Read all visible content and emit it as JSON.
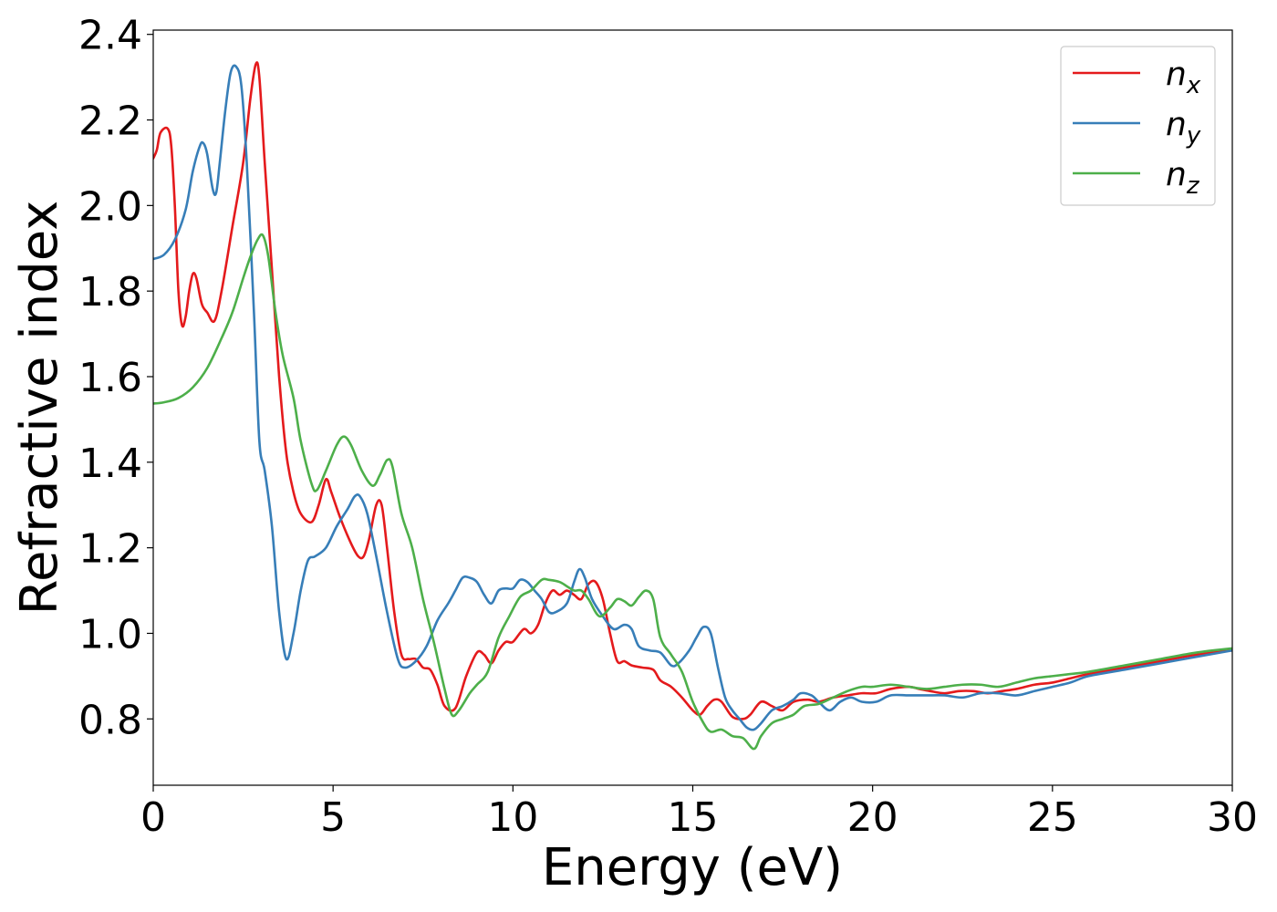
{
  "chart_data": {
    "type": "line",
    "title": "",
    "xlabel": "Energy (eV)",
    "ylabel": "Refractive index",
    "xlim": [
      0,
      30
    ],
    "ylim": [
      0.645,
      2.41
    ],
    "grid": false,
    "legend_position": "top-right",
    "x_ticks": [
      0,
      5,
      10,
      15,
      20,
      25,
      30
    ],
    "x_tick_labels": [
      "0",
      "5",
      "10",
      "15",
      "20",
      "25",
      "30"
    ],
    "y_ticks": [
      0.8,
      1.0,
      1.2,
      1.4,
      1.6,
      1.8,
      2.0,
      2.2,
      2.4
    ],
    "y_tick_labels": [
      "0.8",
      "1.0",
      "1.2",
      "1.4",
      "1.6",
      "1.8",
      "2.0",
      "2.2",
      "2.4"
    ],
    "series": [
      {
        "name": "n_x",
        "label_base": "n",
        "label_sub": "x",
        "color": "#e41a1c",
        "points": [
          [
            0,
            2.11
          ],
          [
            0.1,
            2.13
          ],
          [
            0.2,
            2.17
          ],
          [
            0.4,
            2.18
          ],
          [
            0.5,
            2.14
          ],
          [
            0.6,
            2.0
          ],
          [
            0.7,
            1.8
          ],
          [
            0.8,
            1.72
          ],
          [
            0.9,
            1.74
          ],
          [
            1.0,
            1.8
          ],
          [
            1.1,
            1.84
          ],
          [
            1.2,
            1.83
          ],
          [
            1.35,
            1.77
          ],
          [
            1.5,
            1.75
          ],
          [
            1.7,
            1.73
          ],
          [
            1.9,
            1.8
          ],
          [
            2.2,
            1.95
          ],
          [
            2.5,
            2.1
          ],
          [
            2.7,
            2.25
          ],
          [
            2.85,
            2.33
          ],
          [
            2.95,
            2.3
          ],
          [
            3.1,
            2.1
          ],
          [
            3.3,
            1.85
          ],
          [
            3.5,
            1.6
          ],
          [
            3.7,
            1.42
          ],
          [
            3.9,
            1.33
          ],
          [
            4.1,
            1.28
          ],
          [
            4.4,
            1.26
          ],
          [
            4.6,
            1.3
          ],
          [
            4.8,
            1.36
          ],
          [
            4.95,
            1.33
          ],
          [
            5.2,
            1.27
          ],
          [
            5.5,
            1.21
          ],
          [
            5.7,
            1.18
          ],
          [
            5.85,
            1.18
          ],
          [
            6.0,
            1.22
          ],
          [
            6.2,
            1.3
          ],
          [
            6.35,
            1.3
          ],
          [
            6.5,
            1.2
          ],
          [
            6.7,
            1.05
          ],
          [
            6.9,
            0.95
          ],
          [
            7.1,
            0.94
          ],
          [
            7.3,
            0.94
          ],
          [
            7.5,
            0.92
          ],
          [
            7.7,
            0.915
          ],
          [
            7.9,
            0.88
          ],
          [
            8.1,
            0.83
          ],
          [
            8.4,
            0.825
          ],
          [
            8.7,
            0.9
          ],
          [
            9.0,
            0.955
          ],
          [
            9.2,
            0.95
          ],
          [
            9.4,
            0.93
          ],
          [
            9.6,
            0.96
          ],
          [
            9.8,
            0.98
          ],
          [
            10.0,
            0.98
          ],
          [
            10.3,
            1.01
          ],
          [
            10.5,
            1.0
          ],
          [
            10.7,
            1.02
          ],
          [
            10.9,
            1.07
          ],
          [
            11.1,
            1.1
          ],
          [
            11.3,
            1.09
          ],
          [
            11.5,
            1.1
          ],
          [
            11.7,
            1.09
          ],
          [
            11.9,
            1.08
          ],
          [
            12.1,
            1.115
          ],
          [
            12.3,
            1.12
          ],
          [
            12.5,
            1.08
          ],
          [
            12.7,
            1.0
          ],
          [
            12.9,
            0.935
          ],
          [
            13.1,
            0.935
          ],
          [
            13.3,
            0.925
          ],
          [
            13.6,
            0.92
          ],
          [
            13.9,
            0.915
          ],
          [
            14.1,
            0.89
          ],
          [
            14.4,
            0.875
          ],
          [
            14.7,
            0.85
          ],
          [
            15.0,
            0.82
          ],
          [
            15.2,
            0.81
          ],
          [
            15.4,
            0.83
          ],
          [
            15.6,
            0.845
          ],
          [
            15.8,
            0.84
          ],
          [
            16.1,
            0.805
          ],
          [
            16.4,
            0.8
          ],
          [
            16.6,
            0.81
          ],
          [
            16.9,
            0.84
          ],
          [
            17.2,
            0.83
          ],
          [
            17.5,
            0.82
          ],
          [
            17.8,
            0.84
          ],
          [
            18.2,
            0.845
          ],
          [
            18.5,
            0.84
          ],
          [
            18.9,
            0.85
          ],
          [
            19.3,
            0.855
          ],
          [
            19.7,
            0.86
          ],
          [
            20.1,
            0.86
          ],
          [
            20.5,
            0.87
          ],
          [
            21.0,
            0.875
          ],
          [
            21.3,
            0.87
          ],
          [
            21.6,
            0.865
          ],
          [
            22.0,
            0.86
          ],
          [
            22.4,
            0.865
          ],
          [
            22.8,
            0.865
          ],
          [
            23.2,
            0.86
          ],
          [
            23.6,
            0.865
          ],
          [
            24.0,
            0.87
          ],
          [
            24.5,
            0.88
          ],
          [
            25.0,
            0.885
          ],
          [
            25.5,
            0.895
          ],
          [
            26.0,
            0.905
          ],
          [
            27.0,
            0.92
          ],
          [
            28.0,
            0.935
          ],
          [
            29.0,
            0.95
          ],
          [
            30.0,
            0.96
          ]
        ]
      },
      {
        "name": "n_y",
        "label_base": "n",
        "label_sub": "y",
        "color": "#377eb8",
        "points": [
          [
            0,
            1.875
          ],
          [
            0.3,
            1.885
          ],
          [
            0.6,
            1.92
          ],
          [
            0.9,
            1.99
          ],
          [
            1.1,
            2.08
          ],
          [
            1.3,
            2.14
          ],
          [
            1.4,
            2.145
          ],
          [
            1.5,
            2.12
          ],
          [
            1.65,
            2.04
          ],
          [
            1.75,
            2.03
          ],
          [
            1.85,
            2.1
          ],
          [
            2.0,
            2.22
          ],
          [
            2.15,
            2.31
          ],
          [
            2.3,
            2.325
          ],
          [
            2.45,
            2.28
          ],
          [
            2.6,
            2.1
          ],
          [
            2.8,
            1.75
          ],
          [
            2.95,
            1.45
          ],
          [
            3.1,
            1.38
          ],
          [
            3.3,
            1.25
          ],
          [
            3.5,
            1.05
          ],
          [
            3.7,
            0.94
          ],
          [
            3.9,
            1.0
          ],
          [
            4.1,
            1.1
          ],
          [
            4.3,
            1.17
          ],
          [
            4.5,
            1.18
          ],
          [
            4.8,
            1.2
          ],
          [
            5.1,
            1.25
          ],
          [
            5.4,
            1.29
          ],
          [
            5.6,
            1.32
          ],
          [
            5.75,
            1.32
          ],
          [
            5.95,
            1.28
          ],
          [
            6.2,
            1.18
          ],
          [
            6.5,
            1.05
          ],
          [
            6.8,
            0.94
          ],
          [
            7.0,
            0.92
          ],
          [
            7.3,
            0.935
          ],
          [
            7.6,
            0.97
          ],
          [
            7.9,
            1.03
          ],
          [
            8.2,
            1.07
          ],
          [
            8.4,
            1.1
          ],
          [
            8.6,
            1.13
          ],
          [
            8.8,
            1.13
          ],
          [
            9.0,
            1.12
          ],
          [
            9.2,
            1.09
          ],
          [
            9.4,
            1.07
          ],
          [
            9.6,
            1.1
          ],
          [
            9.8,
            1.105
          ],
          [
            10.0,
            1.105
          ],
          [
            10.2,
            1.125
          ],
          [
            10.4,
            1.12
          ],
          [
            10.6,
            1.1
          ],
          [
            10.8,
            1.08
          ],
          [
            11.0,
            1.05
          ],
          [
            11.2,
            1.05
          ],
          [
            11.5,
            1.07
          ],
          [
            11.7,
            1.12
          ],
          [
            11.85,
            1.15
          ],
          [
            12.0,
            1.13
          ],
          [
            12.2,
            1.08
          ],
          [
            12.5,
            1.04
          ],
          [
            12.8,
            1.01
          ],
          [
            13.1,
            1.02
          ],
          [
            13.3,
            1.01
          ],
          [
            13.5,
            0.97
          ],
          [
            13.8,
            0.96
          ],
          [
            14.1,
            0.955
          ],
          [
            14.4,
            0.925
          ],
          [
            14.6,
            0.93
          ],
          [
            14.9,
            0.96
          ],
          [
            15.1,
            0.99
          ],
          [
            15.3,
            1.015
          ],
          [
            15.5,
            1.0
          ],
          [
            15.7,
            0.92
          ],
          [
            15.9,
            0.85
          ],
          [
            16.1,
            0.82
          ],
          [
            16.3,
            0.8
          ],
          [
            16.5,
            0.78
          ],
          [
            16.7,
            0.775
          ],
          [
            16.9,
            0.79
          ],
          [
            17.2,
            0.82
          ],
          [
            17.5,
            0.83
          ],
          [
            17.8,
            0.845
          ],
          [
            18.0,
            0.86
          ],
          [
            18.3,
            0.855
          ],
          [
            18.5,
            0.84
          ],
          [
            18.8,
            0.82
          ],
          [
            19.1,
            0.84
          ],
          [
            19.4,
            0.85
          ],
          [
            19.7,
            0.84
          ],
          [
            20.1,
            0.84
          ],
          [
            20.5,
            0.855
          ],
          [
            21.0,
            0.855
          ],
          [
            21.5,
            0.855
          ],
          [
            22.0,
            0.855
          ],
          [
            22.5,
            0.85
          ],
          [
            23.0,
            0.86
          ],
          [
            23.5,
            0.86
          ],
          [
            24.0,
            0.855
          ],
          [
            24.5,
            0.865
          ],
          [
            25.0,
            0.875
          ],
          [
            25.5,
            0.885
          ],
          [
            26.0,
            0.9
          ],
          [
            27.0,
            0.915
          ],
          [
            28.0,
            0.93
          ],
          [
            29.0,
            0.945
          ],
          [
            30.0,
            0.96
          ]
        ]
      },
      {
        "name": "n_z",
        "label_base": "n",
        "label_sub": "z",
        "color": "#4daf4a",
        "points": [
          [
            0,
            1.537
          ],
          [
            0.3,
            1.54
          ],
          [
            0.7,
            1.55
          ],
          [
            1.1,
            1.575
          ],
          [
            1.5,
            1.62
          ],
          [
            1.9,
            1.69
          ],
          [
            2.2,
            1.75
          ],
          [
            2.5,
            1.83
          ],
          [
            2.7,
            1.88
          ],
          [
            2.9,
            1.92
          ],
          [
            3.05,
            1.93
          ],
          [
            3.2,
            1.88
          ],
          [
            3.4,
            1.75
          ],
          [
            3.6,
            1.65
          ],
          [
            3.9,
            1.55
          ],
          [
            4.1,
            1.45
          ],
          [
            4.4,
            1.35
          ],
          [
            4.55,
            1.335
          ],
          [
            4.8,
            1.38
          ],
          [
            5.1,
            1.44
          ],
          [
            5.3,
            1.46
          ],
          [
            5.5,
            1.44
          ],
          [
            5.8,
            1.38
          ],
          [
            6.1,
            1.345
          ],
          [
            6.3,
            1.37
          ],
          [
            6.5,
            1.405
          ],
          [
            6.65,
            1.39
          ],
          [
            6.9,
            1.28
          ],
          [
            7.2,
            1.2
          ],
          [
            7.5,
            1.08
          ],
          [
            7.8,
            0.98
          ],
          [
            8.1,
            0.87
          ],
          [
            8.3,
            0.81
          ],
          [
            8.5,
            0.82
          ],
          [
            8.8,
            0.86
          ],
          [
            9.0,
            0.88
          ],
          [
            9.3,
            0.91
          ],
          [
            9.6,
            0.99
          ],
          [
            9.9,
            1.04
          ],
          [
            10.2,
            1.085
          ],
          [
            10.5,
            1.1
          ],
          [
            10.8,
            1.125
          ],
          [
            11.0,
            1.125
          ],
          [
            11.3,
            1.12
          ],
          [
            11.5,
            1.11
          ],
          [
            11.7,
            1.1
          ],
          [
            11.9,
            1.1
          ],
          [
            12.1,
            1.08
          ],
          [
            12.4,
            1.04
          ],
          [
            12.7,
            1.06
          ],
          [
            12.9,
            1.08
          ],
          [
            13.1,
            1.075
          ],
          [
            13.3,
            1.065
          ],
          [
            13.5,
            1.085
          ],
          [
            13.7,
            1.1
          ],
          [
            13.9,
            1.08
          ],
          [
            14.1,
            0.99
          ],
          [
            14.4,
            0.95
          ],
          [
            14.7,
            0.91
          ],
          [
            15.0,
            0.84
          ],
          [
            15.3,
            0.79
          ],
          [
            15.5,
            0.77
          ],
          [
            15.8,
            0.775
          ],
          [
            16.1,
            0.76
          ],
          [
            16.4,
            0.755
          ],
          [
            16.7,
            0.73
          ],
          [
            16.9,
            0.76
          ],
          [
            17.2,
            0.79
          ],
          [
            17.5,
            0.8
          ],
          [
            17.8,
            0.81
          ],
          [
            18.1,
            0.83
          ],
          [
            18.5,
            0.835
          ],
          [
            18.9,
            0.85
          ],
          [
            19.3,
            0.865
          ],
          [
            19.7,
            0.875
          ],
          [
            20.0,
            0.875
          ],
          [
            20.5,
            0.88
          ],
          [
            21.0,
            0.875
          ],
          [
            21.5,
            0.87
          ],
          [
            22.0,
            0.875
          ],
          [
            22.5,
            0.88
          ],
          [
            23.0,
            0.88
          ],
          [
            23.5,
            0.875
          ],
          [
            24.0,
            0.885
          ],
          [
            24.5,
            0.895
          ],
          [
            25.0,
            0.9
          ],
          [
            25.5,
            0.905
          ],
          [
            26.0,
            0.91
          ],
          [
            27.0,
            0.925
          ],
          [
            28.0,
            0.94
          ],
          [
            29.0,
            0.955
          ],
          [
            30.0,
            0.965
          ]
        ]
      }
    ]
  }
}
